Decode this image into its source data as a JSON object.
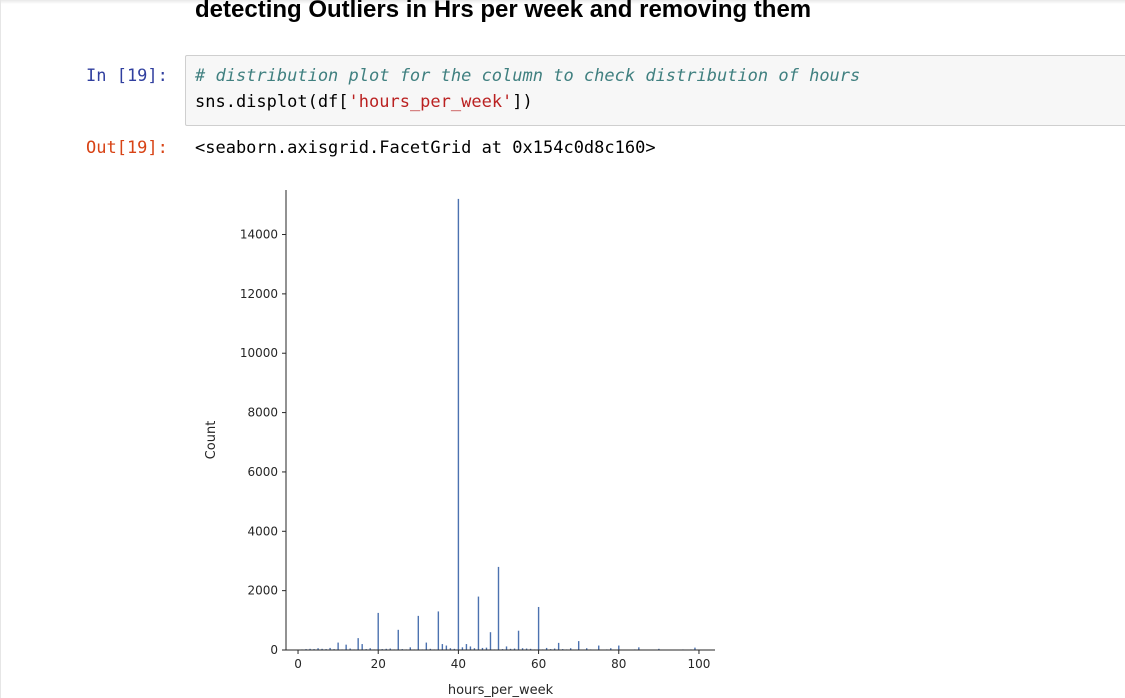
{
  "heading": "detecting Outliers in Hrs per week and removing them",
  "cell": {
    "in_prompt": "In [19]:",
    "out_prompt": "Out[19]:",
    "code_comment": "# distribution plot for the column to check distribution of hours",
    "code_prefix": "sns.displot(df[",
    "code_string": "'hours_per_week'",
    "code_suffix": "])",
    "output_text": "<seaborn.axisgrid.FacetGrid at 0x154c0d8c160>"
  },
  "colors": {
    "bar": "#4c72b0",
    "in_prompt": "#303f9f",
    "out_prompt": "#d84315"
  },
  "chart_data": {
    "type": "bar",
    "xlabel": "hours_per_week",
    "ylabel": "Count",
    "xlim": [
      -3,
      104
    ],
    "ylim": [
      0,
      15500
    ],
    "xticks": [
      0,
      20,
      40,
      60,
      80,
      100
    ],
    "yticks": [
      0,
      2000,
      4000,
      6000,
      8000,
      10000,
      12000,
      14000
    ],
    "series": [
      {
        "x": [
          1,
          2,
          3,
          4,
          5,
          6,
          7,
          8,
          9,
          10,
          11,
          12,
          13,
          14,
          15,
          16,
          17,
          18,
          19,
          20,
          21,
          22,
          23,
          24,
          25,
          26,
          27,
          28,
          29,
          30,
          31,
          32,
          33,
          34,
          35,
          36,
          37,
          38,
          39,
          40,
          41,
          42,
          43,
          44,
          45,
          46,
          47,
          48,
          49,
          50,
          51,
          52,
          53,
          54,
          55,
          56,
          57,
          58,
          59,
          60,
          61,
          62,
          63,
          64,
          65,
          66,
          67,
          68,
          70,
          72,
          73,
          75,
          77,
          78,
          80,
          84,
          85,
          90,
          96,
          98,
          99
        ],
        "values": [
          20,
          30,
          40,
          30,
          60,
          40,
          30,
          70,
          30,
          250,
          20,
          180,
          50,
          20,
          400,
          200,
          30,
          60,
          20,
          1250,
          30,
          40,
          50,
          20,
          680,
          30,
          20,
          90,
          20,
          1150,
          20,
          250,
          40,
          20,
          1300,
          200,
          150,
          60,
          40,
          15200,
          90,
          200,
          120,
          60,
          1800,
          70,
          80,
          600,
          20,
          2800,
          30,
          120,
          40,
          50,
          650,
          60,
          50,
          40,
          20,
          1450,
          20,
          70,
          30,
          50,
          240,
          30,
          20,
          60,
          300,
          60,
          20,
          150,
          20,
          60,
          150,
          20,
          90,
          40,
          20,
          20,
          80
        ]
      }
    ]
  }
}
